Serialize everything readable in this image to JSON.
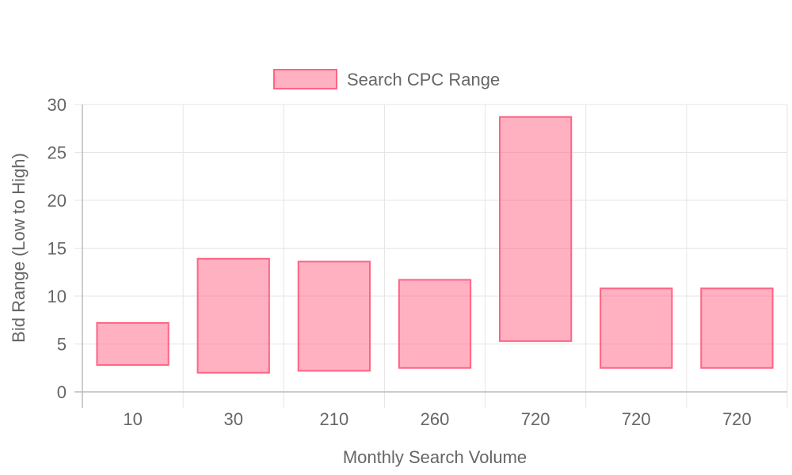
{
  "chart_data": {
    "type": "bar",
    "subtype": "floating-range",
    "categories": [
      "10",
      "30",
      "210",
      "260",
      "720",
      "720",
      "720"
    ],
    "series": [
      {
        "name": "Search CPC Range",
        "ranges": [
          [
            2.8,
            7.2
          ],
          [
            2.0,
            13.9
          ],
          [
            2.2,
            13.6
          ],
          [
            2.5,
            11.7
          ],
          [
            5.3,
            28.7
          ],
          [
            2.5,
            10.8
          ],
          [
            2.5,
            10.8
          ]
        ],
        "color": "#ff6384",
        "fill": "rgba(255,99,132,0.5)"
      }
    ],
    "xlabel": "Monthly Search Volume",
    "ylabel": "Bid Range (Low to High)",
    "ylim": [
      0,
      30
    ],
    "yticks": [
      "0",
      "5",
      "10",
      "15",
      "20",
      "25",
      "30"
    ],
    "legend": "top-center",
    "grid": true
  }
}
